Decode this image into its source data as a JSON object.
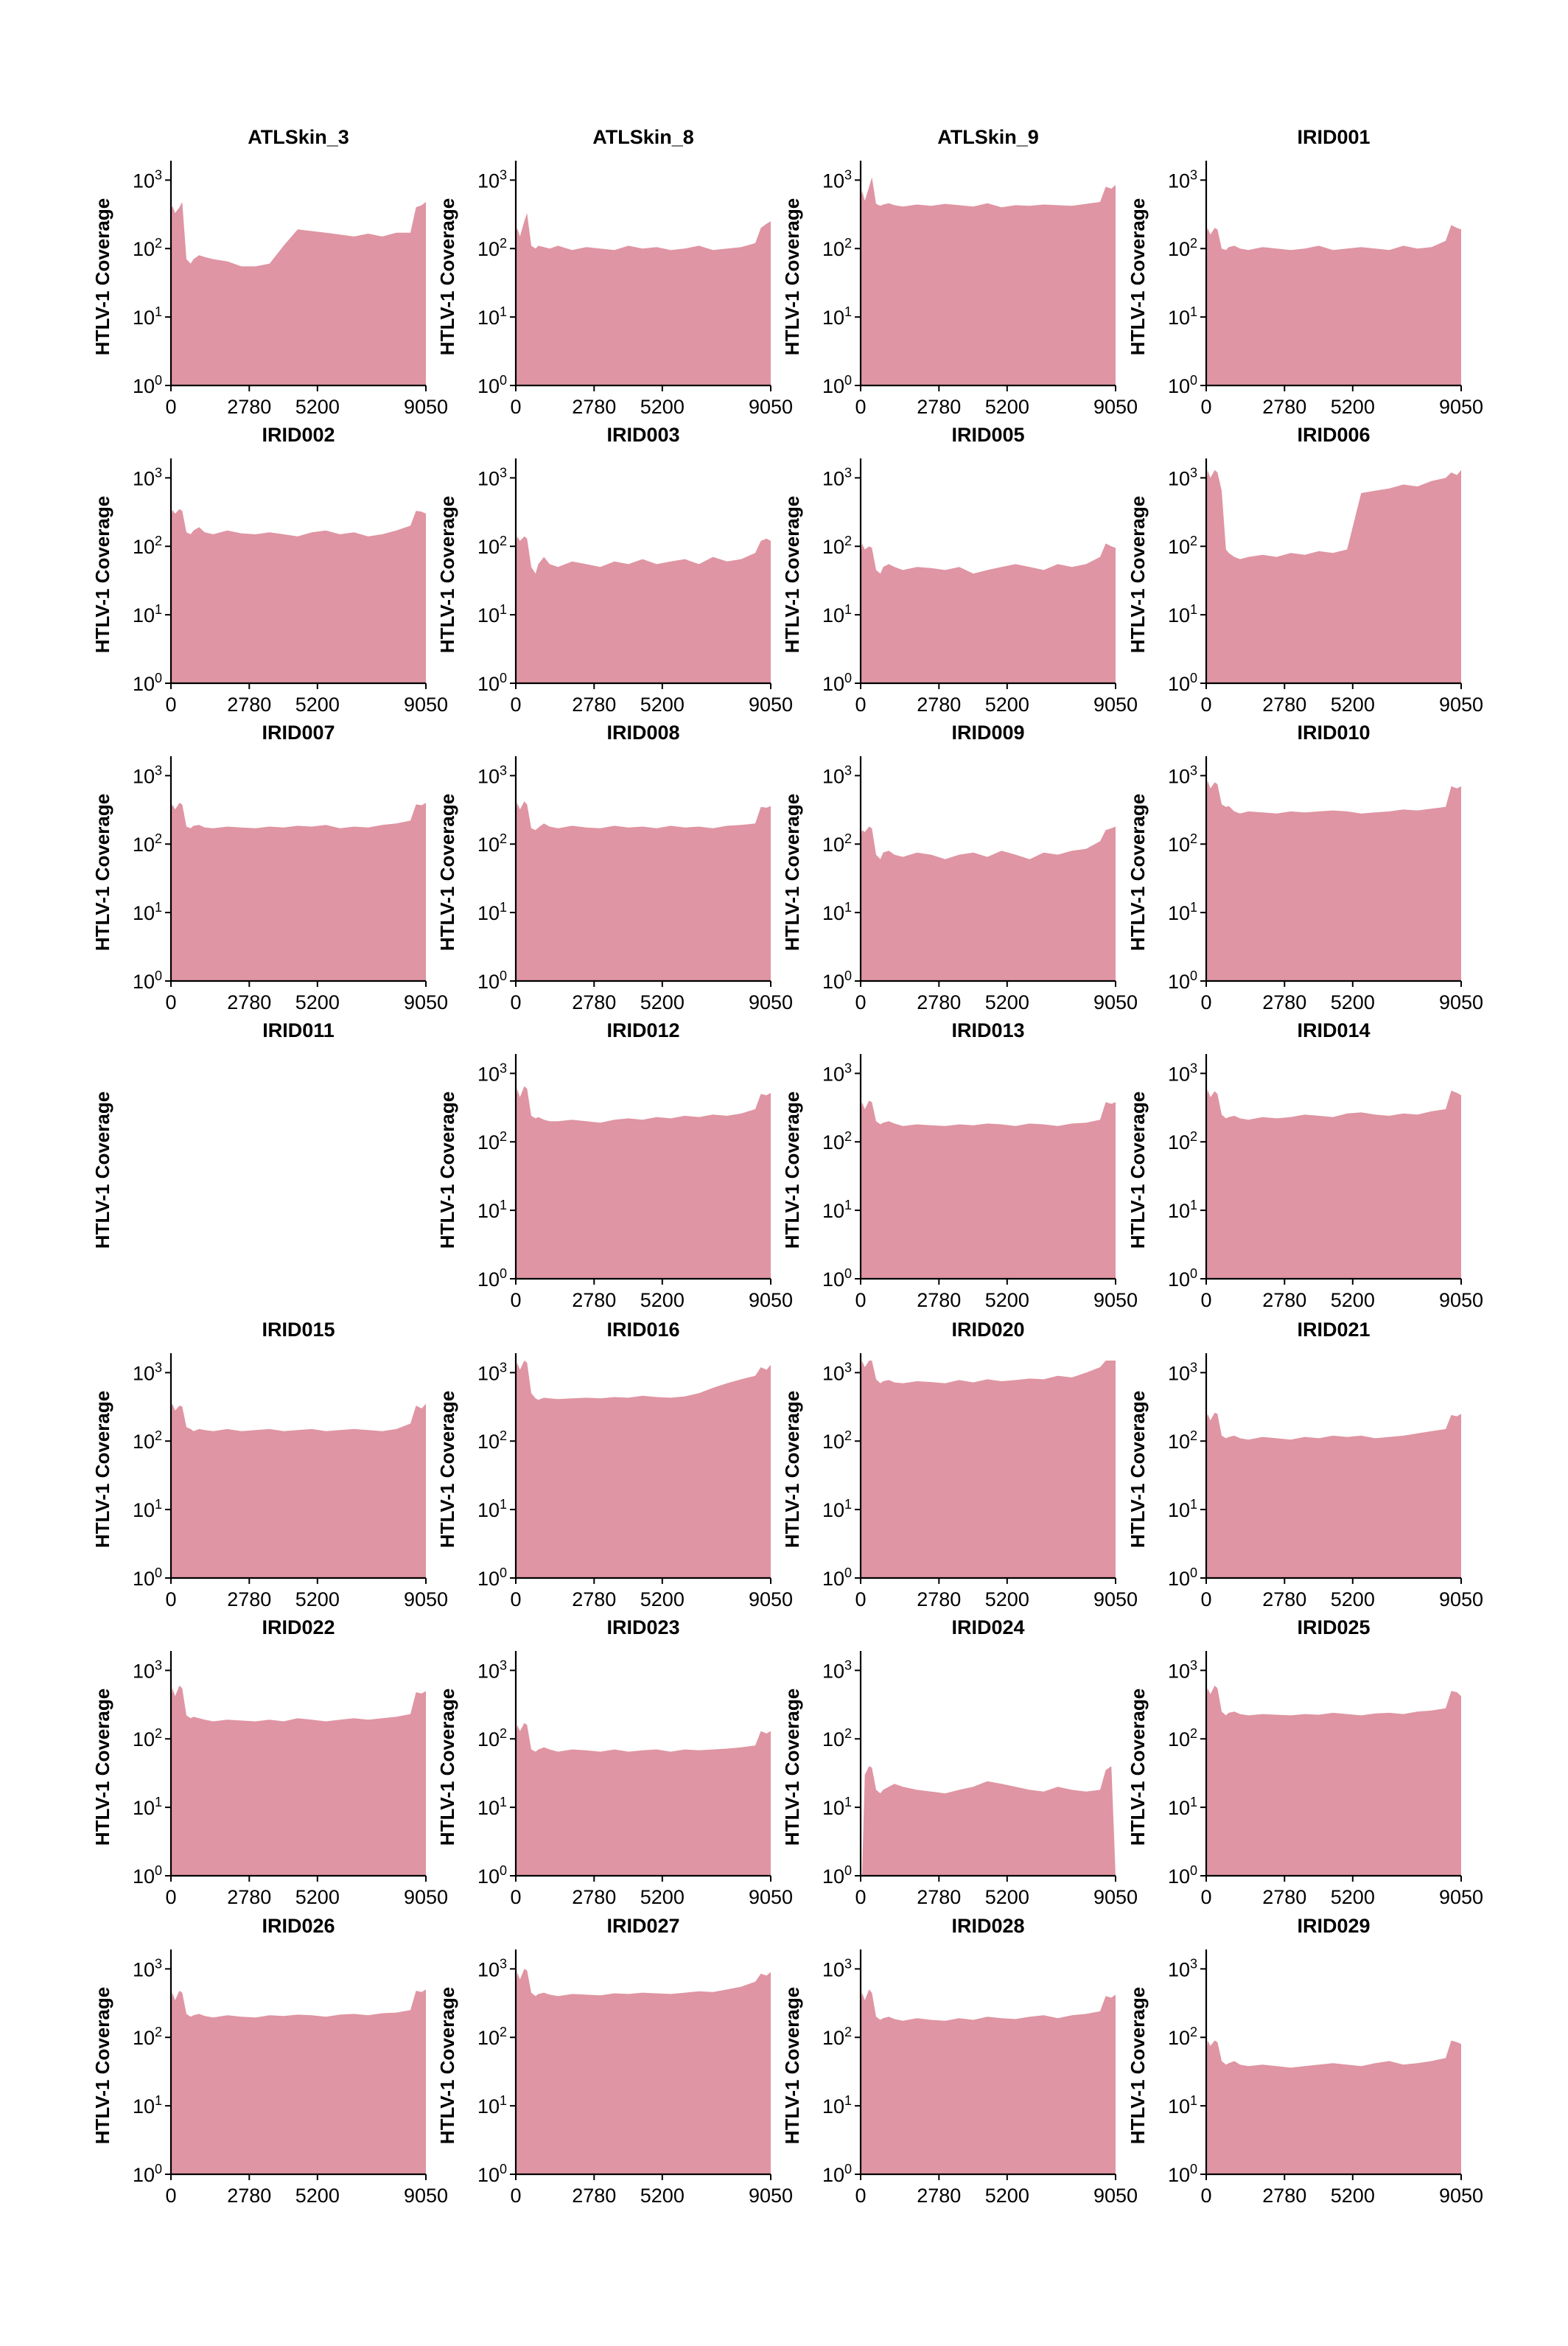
{
  "chart_data": {
    "type": "area",
    "ylabel": "HTLV-1 Coverage",
    "xlabel": "",
    "xlim": [
      0,
      9050
    ],
    "x_ticks": [
      "0",
      "2780",
      "5200",
      "9050"
    ],
    "y_scale": "log",
    "ylim": [
      1,
      1500
    ],
    "y_ticks": [
      {
        "base": "10",
        "exp": "0"
      },
      {
        "base": "10",
        "exp": "1"
      },
      {
        "base": "10",
        "exp": "2"
      },
      {
        "base": "10",
        "exp": "3"
      }
    ],
    "fill_color": "#df95a3",
    "grid": false,
    "x_breakpoints": [
      0,
      50,
      150,
      300,
      400,
      550,
      700,
      800,
      1000,
      1200,
      1500,
      2000,
      2500,
      3000,
      3500,
      4000,
      4500,
      5000,
      5500,
      6000,
      6500,
      7000,
      7500,
      8000,
      8500,
      8700,
      8900,
      9050
    ],
    "panels": [
      {
        "name": "ATLSkin_3",
        "y": [
          350,
          420,
          330,
          400,
          480,
          70,
          60,
          70,
          80,
          75,
          70,
          65,
          55,
          55,
          60,
          110,
          190,
          180,
          170,
          160,
          150,
          165,
          150,
          170,
          170,
          400,
          430,
          480
        ]
      },
      {
        "name": "ATLSkin_8",
        "y": [
          160,
          200,
          150,
          250,
          330,
          110,
          100,
          110,
          105,
          100,
          110,
          95,
          105,
          100,
          95,
          110,
          100,
          105,
          95,
          100,
          110,
          95,
          100,
          105,
          120,
          200,
          230,
          250
        ]
      },
      {
        "name": "ATLSkin_9",
        "y": [
          500,
          700,
          500,
          800,
          1100,
          450,
          420,
          440,
          460,
          430,
          410,
          440,
          420,
          450,
          430,
          410,
          460,
          400,
          430,
          420,
          440,
          430,
          420,
          450,
          480,
          800,
          750,
          850
        ]
      },
      {
        "name": "IRID001",
        "y": [
          150,
          200,
          160,
          200,
          190,
          100,
          95,
          105,
          110,
          100,
          95,
          105,
          100,
          95,
          100,
          110,
          95,
          100,
          105,
          100,
          95,
          110,
          100,
          105,
          130,
          220,
          200,
          190
        ]
      },
      {
        "name": "IRID002",
        "y": [
          250,
          340,
          300,
          350,
          330,
          160,
          150,
          170,
          190,
          160,
          150,
          170,
          155,
          150,
          160,
          150,
          140,
          160,
          170,
          150,
          160,
          140,
          150,
          170,
          200,
          330,
          320,
          300
        ]
      },
      {
        "name": "IRID003",
        "y": [
          100,
          140,
          120,
          140,
          130,
          50,
          40,
          55,
          70,
          55,
          50,
          60,
          55,
          50,
          60,
          55,
          65,
          55,
          60,
          65,
          55,
          70,
          60,
          65,
          80,
          120,
          130,
          120
        ]
      },
      {
        "name": "IRID005",
        "y": [
          70,
          110,
          90,
          100,
          95,
          45,
          40,
          50,
          55,
          50,
          45,
          50,
          48,
          45,
          50,
          40,
          45,
          50,
          55,
          50,
          45,
          55,
          50,
          55,
          70,
          110,
          100,
          95
        ]
      },
      {
        "name": "IRID006",
        "y": [
          800,
          1300,
          1000,
          1300,
          1200,
          650,
          90,
          80,
          70,
          65,
          70,
          75,
          70,
          80,
          75,
          85,
          80,
          90,
          600,
          650,
          700,
          800,
          750,
          900,
          1000,
          1200,
          1100,
          1300
        ]
      },
      {
        "name": "IRID007",
        "y": [
          300,
          380,
          320,
          400,
          380,
          180,
          170,
          185,
          190,
          175,
          170,
          180,
          175,
          170,
          180,
          175,
          185,
          180,
          190,
          170,
          180,
          175,
          190,
          200,
          220,
          380,
          370,
          400
        ]
      },
      {
        "name": "IRID008",
        "y": [
          280,
          400,
          320,
          420,
          380,
          170,
          160,
          175,
          200,
          180,
          170,
          185,
          175,
          170,
          185,
          175,
          180,
          170,
          185,
          175,
          180,
          170,
          185,
          190,
          200,
          350,
          340,
          360
        ]
      },
      {
        "name": "IRID009",
        "y": [
          120,
          160,
          150,
          180,
          170,
          70,
          60,
          75,
          80,
          70,
          65,
          75,
          70,
          60,
          70,
          75,
          65,
          80,
          70,
          60,
          75,
          70,
          80,
          85,
          110,
          160,
          170,
          180
        ]
      },
      {
        "name": "IRID010",
        "y": [
          600,
          850,
          650,
          800,
          750,
          380,
          350,
          360,
          300,
          280,
          300,
          290,
          280,
          300,
          290,
          300,
          310,
          300,
          280,
          290,
          300,
          320,
          310,
          330,
          350,
          700,
          650,
          700
        ]
      },
      {
        "name": "IRID011",
        "y": []
      },
      {
        "name": "IRID012",
        "y": [
          400,
          600,
          450,
          650,
          600,
          240,
          220,
          230,
          210,
          200,
          200,
          210,
          200,
          190,
          210,
          220,
          210,
          230,
          220,
          240,
          230,
          250,
          240,
          260,
          300,
          500,
          480,
          520
        ]
      },
      {
        "name": "IRID013",
        "y": [
          250,
          380,
          300,
          400,
          380,
          200,
          180,
          190,
          200,
          185,
          170,
          180,
          175,
          170,
          180,
          175,
          185,
          180,
          170,
          185,
          180,
          170,
          185,
          190,
          210,
          380,
          360,
          380
        ]
      },
      {
        "name": "IRID014",
        "y": [
          400,
          580,
          450,
          550,
          500,
          250,
          220,
          230,
          240,
          220,
          210,
          230,
          220,
          230,
          250,
          240,
          230,
          260,
          270,
          250,
          240,
          260,
          250,
          280,
          300,
          560,
          520,
          480
        ]
      },
      {
        "name": "IRID015",
        "y": [
          300,
          350,
          280,
          330,
          320,
          160,
          150,
          140,
          150,
          145,
          140,
          150,
          140,
          145,
          150,
          140,
          145,
          150,
          140,
          145,
          150,
          145,
          140,
          150,
          180,
          330,
          300,
          350
        ]
      },
      {
        "name": "IRID016",
        "y": [
          1000,
          1400,
          1100,
          1500,
          1400,
          500,
          420,
          400,
          430,
          420,
          410,
          420,
          430,
          420,
          440,
          430,
          460,
          440,
          430,
          450,
          500,
          600,
          700,
          800,
          900,
          1200,
          1100,
          1300
        ]
      },
      {
        "name": "IRID020",
        "y": [
          1000,
          1500,
          1200,
          1500,
          1500,
          800,
          700,
          750,
          780,
          720,
          700,
          750,
          730,
          700,
          780,
          720,
          800,
          750,
          780,
          820,
          800,
          900,
          850,
          1000,
          1200,
          1500,
          1500,
          1500
        ]
      },
      {
        "name": "IRID021",
        "y": [
          180,
          250,
          200,
          260,
          250,
          120,
          110,
          115,
          120,
          110,
          105,
          115,
          110,
          105,
          115,
          110,
          120,
          115,
          120,
          110,
          115,
          120,
          130,
          140,
          150,
          240,
          230,
          250
        ]
      },
      {
        "name": "IRID022",
        "y": [
          350,
          550,
          420,
          600,
          550,
          220,
          200,
          210,
          200,
          190,
          180,
          190,
          185,
          180,
          190,
          180,
          200,
          190,
          180,
          190,
          200,
          190,
          200,
          210,
          230,
          480,
          460,
          500
        ]
      },
      {
        "name": "IRID023",
        "y": [
          100,
          160,
          130,
          170,
          160,
          70,
          65,
          70,
          75,
          70,
          65,
          70,
          68,
          65,
          70,
          65,
          68,
          70,
          65,
          70,
          68,
          70,
          72,
          75,
          80,
          130,
          120,
          130
        ]
      },
      {
        "name": "IRID024",
        "y": [
          0,
          1,
          30,
          40,
          38,
          18,
          16,
          18,
          20,
          22,
          20,
          18,
          17,
          16,
          18,
          20,
          24,
          22,
          20,
          18,
          17,
          20,
          18,
          17,
          18,
          35,
          40,
          0
        ]
      },
      {
        "name": "IRID025",
        "y": [
          400,
          550,
          450,
          600,
          550,
          250,
          220,
          240,
          250,
          230,
          220,
          230,
          225,
          220,
          230,
          225,
          240,
          230,
          220,
          235,
          240,
          230,
          250,
          260,
          280,
          500,
          480,
          420
        ]
      },
      {
        "name": "IRID026",
        "y": [
          300,
          450,
          350,
          480,
          450,
          220,
          200,
          210,
          220,
          205,
          195,
          210,
          200,
          195,
          210,
          205,
          215,
          210,
          200,
          215,
          220,
          210,
          225,
          230,
          250,
          480,
          460,
          500
        ]
      },
      {
        "name": "IRID027",
        "y": [
          500,
          900,
          700,
          1000,
          950,
          450,
          400,
          430,
          450,
          420,
          400,
          430,
          420,
          410,
          440,
          430,
          450,
          440,
          430,
          450,
          470,
          460,
          500,
          550,
          650,
          850,
          800,
          900
        ]
      },
      {
        "name": "IRID028",
        "y": [
          300,
          450,
          350,
          500,
          450,
          200,
          180,
          190,
          200,
          185,
          175,
          190,
          180,
          175,
          190,
          180,
          200,
          190,
          185,
          200,
          210,
          190,
          210,
          220,
          240,
          400,
          380,
          420
        ]
      },
      {
        "name": "IRID029",
        "y": [
          60,
          90,
          75,
          90,
          85,
          45,
          40,
          42,
          45,
          40,
          38,
          40,
          38,
          36,
          38,
          40,
          42,
          40,
          38,
          42,
          45,
          40,
          42,
          45,
          50,
          90,
          85,
          80
        ]
      }
    ]
  }
}
